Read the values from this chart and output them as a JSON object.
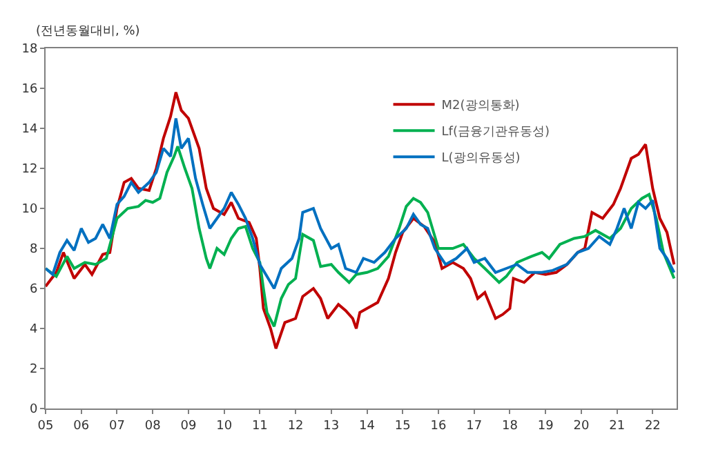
{
  "chart_data": {
    "type": "line",
    "ylabel": "(전년동월대비, %)",
    "xlim": [
      2005,
      2022.67
    ],
    "xticks": [
      {
        "value": 2005,
        "label": "05"
      },
      {
        "value": 2006,
        "label": "06"
      },
      {
        "value": 2007,
        "label": "07"
      },
      {
        "value": 2008,
        "label": "08"
      },
      {
        "value": 2009,
        "label": "09"
      },
      {
        "value": 2010,
        "label": "10"
      },
      {
        "value": 2011,
        "label": "11"
      },
      {
        "value": 2012,
        "label": "12"
      },
      {
        "value": 2013,
        "label": "13"
      },
      {
        "value": 2014,
        "label": "14"
      },
      {
        "value": 2015,
        "label": "15"
      },
      {
        "value": 2016,
        "label": "16"
      },
      {
        "value": 2017,
        "label": "17"
      },
      {
        "value": 2018,
        "label": "18"
      },
      {
        "value": 2019,
        "label": "19"
      },
      {
        "value": 2020,
        "label": "20"
      },
      {
        "value": 2021,
        "label": "21"
      },
      {
        "value": 2022,
        "label": "22"
      }
    ],
    "ylim": [
      0,
      18
    ],
    "yticks": [
      0,
      2,
      4,
      6,
      8,
      10,
      12,
      14,
      16,
      18
    ],
    "legend": "top right",
    "marker": "none",
    "line_style": "solid",
    "series": [
      {
        "name": "M2(광의통화)",
        "color": "#c00000",
        "x": [
          2005.0,
          2005.3,
          2005.5,
          2005.8,
          2006.1,
          2006.3,
          2006.6,
          2006.8,
          2007.0,
          2007.2,
          2007.4,
          2007.6,
          2007.9,
          2008.1,
          2008.3,
          2008.5,
          2008.65,
          2008.8,
          2009.0,
          2009.3,
          2009.5,
          2009.7,
          2010.0,
          2010.2,
          2010.4,
          2010.7,
          2010.9,
          2011.0,
          2011.1,
          2011.3,
          2011.45,
          2011.7,
          2012.0,
          2012.2,
          2012.5,
          2012.7,
          2012.9,
          2013.2,
          2013.4,
          2013.6,
          2013.7,
          2013.8,
          2014.0,
          2014.3,
          2014.6,
          2014.8,
          2015.0,
          2015.3,
          2015.6,
          2015.9,
          2016.1,
          2016.4,
          2016.7,
          2016.9,
          2017.1,
          2017.3,
          2017.6,
          2017.8,
          2018.0,
          2018.1,
          2018.4,
          2018.7,
          2019.0,
          2019.3,
          2019.6,
          2019.9,
          2020.1,
          2020.3,
          2020.6,
          2020.9,
          2021.1,
          2021.4,
          2021.6,
          2021.8,
          2022.0,
          2022.2,
          2022.4,
          2022.6
        ],
        "values": [
          6.1,
          6.8,
          7.8,
          6.5,
          7.2,
          6.7,
          7.7,
          7.8,
          10.0,
          11.3,
          11.5,
          11.0,
          10.9,
          12.0,
          13.5,
          14.6,
          15.8,
          14.9,
          14.5,
          13.0,
          11.0,
          10.0,
          9.7,
          10.3,
          9.5,
          9.3,
          8.5,
          7.0,
          5.0,
          4.0,
          3.0,
          4.3,
          4.5,
          5.6,
          6.0,
          5.5,
          4.5,
          5.2,
          4.9,
          4.5,
          4.0,
          4.8,
          5.0,
          5.3,
          6.5,
          7.8,
          8.8,
          9.5,
          9.1,
          8.3,
          7.0,
          7.3,
          7.0,
          6.5,
          5.5,
          5.8,
          4.5,
          4.7,
          5.0,
          6.5,
          6.3,
          6.8,
          6.7,
          6.8,
          7.2,
          7.8,
          8.0,
          9.8,
          9.5,
          10.2,
          11.0,
          12.5,
          12.7,
          13.2,
          11.0,
          9.5,
          8.8,
          7.2
        ]
      },
      {
        "name": "Lf(금융기관유동성)",
        "color": "#00b050",
        "x": [
          2005.0,
          2005.3,
          2005.6,
          2005.8,
          2006.1,
          2006.4,
          2006.7,
          2007.0,
          2007.3,
          2007.6,
          2007.8,
          2008.0,
          2008.2,
          2008.4,
          2008.6,
          2008.7,
          2008.9,
          2009.1,
          2009.3,
          2009.5,
          2009.6,
          2009.8,
          2010.0,
          2010.2,
          2010.4,
          2010.6,
          2010.8,
          2011.0,
          2011.1,
          2011.2,
          2011.4,
          2011.6,
          2011.8,
          2012.0,
          2012.2,
          2012.5,
          2012.7,
          2013.0,
          2013.2,
          2013.5,
          2013.7,
          2014.0,
          2014.3,
          2014.6,
          2014.9,
          2015.1,
          2015.3,
          2015.5,
          2015.7,
          2016.0,
          2016.4,
          2016.7,
          2017.0,
          2017.3,
          2017.7,
          2017.9,
          2018.2,
          2018.6,
          2018.9,
          2019.1,
          2019.4,
          2019.8,
          2020.1,
          2020.4,
          2020.8,
          2021.1,
          2021.4,
          2021.7,
          2021.9,
          2022.1,
          2022.3,
          2022.6
        ],
        "values": [
          7.0,
          6.6,
          7.6,
          7.0,
          7.3,
          7.2,
          7.5,
          9.5,
          10.0,
          10.1,
          10.4,
          10.3,
          10.5,
          11.8,
          12.6,
          13.1,
          12.0,
          11.0,
          9.0,
          7.5,
          7.0,
          8.0,
          7.7,
          8.5,
          9.0,
          9.1,
          8.0,
          7.3,
          6.0,
          4.8,
          4.1,
          5.5,
          6.2,
          6.5,
          8.7,
          8.4,
          7.1,
          7.2,
          6.8,
          6.3,
          6.7,
          6.8,
          7.0,
          7.6,
          9.0,
          10.1,
          10.5,
          10.3,
          9.8,
          8.0,
          8.0,
          8.2,
          7.5,
          7.0,
          6.3,
          6.6,
          7.3,
          7.6,
          7.8,
          7.5,
          8.2,
          8.5,
          8.6,
          8.9,
          8.5,
          9.0,
          10.0,
          10.5,
          10.7,
          9.5,
          7.8,
          6.5
        ]
      },
      {
        "name": "L(광의유동성)",
        "color": "#0070c0",
        "x": [
          2005.0,
          2005.2,
          2005.4,
          2005.6,
          2005.8,
          2006.0,
          2006.2,
          2006.4,
          2006.6,
          2006.8,
          2007.0,
          2007.2,
          2007.4,
          2007.6,
          2007.9,
          2008.1,
          2008.3,
          2008.5,
          2008.65,
          2008.8,
          2009.0,
          2009.2,
          2009.4,
          2009.6,
          2009.8,
          2010.0,
          2010.2,
          2010.4,
          2010.6,
          2010.8,
          2011.0,
          2011.2,
          2011.4,
          2011.6,
          2011.9,
          2012.1,
          2012.2,
          2012.5,
          2012.7,
          2013.0,
          2013.2,
          2013.4,
          2013.7,
          2013.9,
          2014.2,
          2014.5,
          2014.8,
          2015.1,
          2015.3,
          2015.5,
          2015.7,
          2015.9,
          2016.2,
          2016.5,
          2016.8,
          2017.0,
          2017.3,
          2017.6,
          2017.9,
          2018.2,
          2018.5,
          2018.9,
          2019.2,
          2019.6,
          2019.9,
          2020.2,
          2020.5,
          2020.8,
          2021.0,
          2021.2,
          2021.4,
          2021.6,
          2021.8,
          2022.0,
          2022.2,
          2022.4,
          2022.6
        ],
        "values": [
          7.0,
          6.7,
          7.8,
          8.4,
          7.9,
          9.0,
          8.3,
          8.5,
          9.2,
          8.5,
          10.2,
          10.6,
          11.3,
          10.8,
          11.3,
          11.8,
          13.0,
          12.6,
          14.5,
          13.0,
          13.5,
          11.5,
          10.2,
          9.0,
          9.5,
          10.0,
          10.8,
          10.2,
          9.5,
          8.5,
          7.2,
          6.6,
          6.0,
          7.0,
          7.5,
          8.5,
          9.8,
          10.0,
          9.0,
          8.0,
          8.2,
          7.0,
          6.8,
          7.5,
          7.3,
          7.8,
          8.5,
          9.0,
          9.7,
          9.2,
          9.0,
          8.0,
          7.2,
          7.5,
          8.0,
          7.3,
          7.5,
          6.8,
          7.0,
          7.2,
          6.8,
          6.8,
          6.9,
          7.2,
          7.8,
          8.0,
          8.6,
          8.2,
          9.0,
          10.0,
          9.0,
          10.3,
          10.0,
          10.4,
          8.0,
          7.5,
          6.8
        ]
      }
    ]
  }
}
